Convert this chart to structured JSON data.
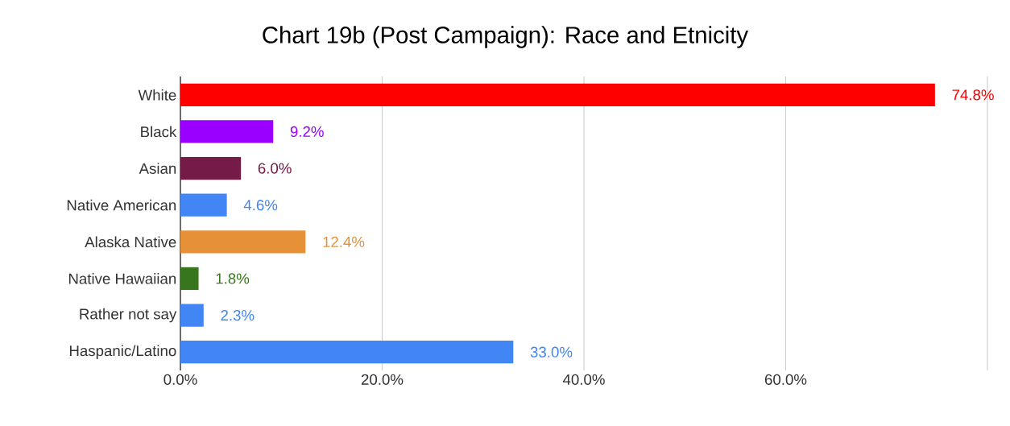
{
  "chart_data": {
    "type": "bar",
    "orientation": "horizontal",
    "title": "Chart 19b (Post Campaign): Race and Etnicity",
    "categories": [
      "White",
      "Black",
      "Asian",
      "Native American",
      "Alaska Native",
      "Native Hawaiian",
      "Rather not say",
      "Haspanic/Latino"
    ],
    "values": [
      74.8,
      9.2,
      6.0,
      4.6,
      12.4,
      1.8,
      2.3,
      33.0
    ],
    "colors": [
      "#ff0000",
      "#9900ff",
      "#741b47",
      "#4285f4",
      "#e69138",
      "#38761d",
      "#4285f4",
      "#4285f4"
    ],
    "value_labels": [
      "74.8%",
      "9.2%",
      "6.0%",
      "4.6%",
      "12.4%",
      "1.8%",
      "2.3%",
      "33.0%"
    ],
    "xlim": [
      0,
      80
    ],
    "xticks": [
      {
        "value": 0,
        "label": "0.0%"
      },
      {
        "value": 20,
        "label": "20.0%"
      },
      {
        "value": 40,
        "label": "40.0%"
      },
      {
        "value": 60,
        "label": "60.0%"
      },
      {
        "value": 80,
        "label": null
      }
    ],
    "grid": "x"
  }
}
